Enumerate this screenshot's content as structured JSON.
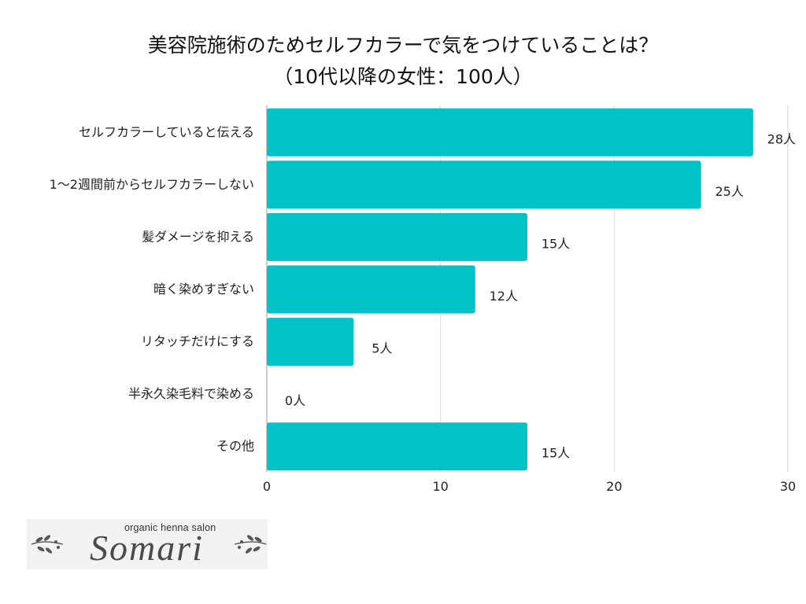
{
  "title": {
    "line1": "美容院施術のためセルフカラーで気をつけていることは？",
    "line2": "（10代以降の女性：100人）"
  },
  "chart_data": {
    "type": "bar",
    "orientation": "horizontal",
    "categories": [
      "セルフカラーしていると伝える",
      "1〜2週間前からセルフカラーしない",
      "髪ダメージを抑える",
      "暗く染めすぎない",
      "リタッチだけにする",
      "半永久染毛料で染める",
      "その他"
    ],
    "values": [
      28,
      25,
      15,
      12,
      5,
      0,
      15
    ],
    "value_labels": [
      "28人",
      "25人",
      "15人",
      "12人",
      "5人",
      "0人",
      "15人"
    ],
    "xlim": [
      0,
      30
    ],
    "xticks": [
      "0",
      "10",
      "20",
      "30"
    ],
    "grid": "vertical",
    "legend": "none",
    "bar_color": "#00c2c7"
  },
  "logo": {
    "tagline": "organic henna salon",
    "brand": "Somari"
  }
}
